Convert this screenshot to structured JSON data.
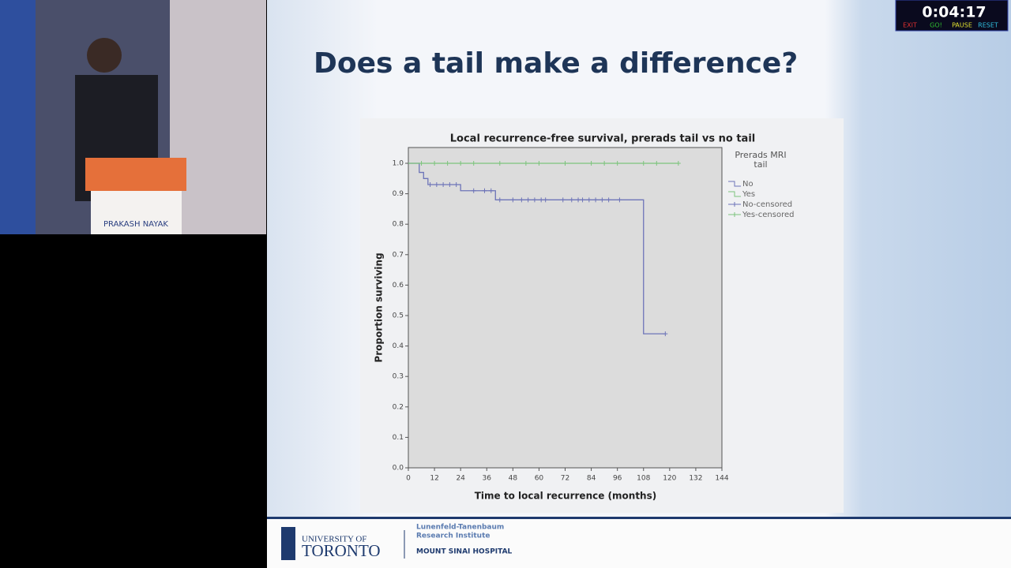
{
  "timer": {
    "time": "0:04:17",
    "buttons": [
      "EXIT",
      "GO!",
      "PAUSE",
      "RESET"
    ]
  },
  "speaker": {
    "name_plate": "PRAKASH NAYAK"
  },
  "slide": {
    "title": "Does a tail make a difference?"
  },
  "chart_data": {
    "type": "line",
    "title": "Local recurrence-free survival, prerads tail vs no tail",
    "x_label": "Time to local recurrence (months)",
    "y_label": "Proportion surviving",
    "legend_title": "Prerads MRI tail",
    "legend": "right",
    "step": "post",
    "xlim": [
      0,
      144
    ],
    "xticks": [
      0,
      12,
      24,
      36,
      48,
      60,
      72,
      84,
      96,
      108,
      120,
      132,
      144
    ],
    "ylim": [
      0,
      1
    ],
    "yticks": [
      {
        "value": 0,
        "label": "0.0"
      },
      0.1,
      0.2,
      0.3,
      0.4,
      0.5,
      0.6,
      0.7,
      0.8,
      0.9,
      {
        "value": 1,
        "label": "1.0"
      }
    ],
    "series": [
      {
        "name": "No",
        "color": "#6d74b8",
        "marker": "line",
        "x": [
          0,
          5,
          7,
          9,
          24,
          40,
          108,
          118
        ],
        "values": [
          1.0,
          0.97,
          0.95,
          0.93,
          0.91,
          0.88,
          0.44,
          0.44
        ]
      },
      {
        "name": "Yes",
        "color": "#7cc47c",
        "marker": "line",
        "x": [
          0,
          124
        ],
        "values": [
          1.0,
          1.0
        ]
      },
      {
        "name": "No-censored",
        "color": "#6d74b8",
        "marker": "cross",
        "x": [
          10,
          13,
          16,
          19,
          22,
          30,
          35,
          38,
          42,
          48,
          52,
          55,
          58,
          61,
          63,
          71,
          75,
          78,
          80,
          83,
          86,
          89,
          92,
          97,
          118
        ],
        "values": [
          0.93,
          0.93,
          0.93,
          0.93,
          0.93,
          0.91,
          0.91,
          0.91,
          0.88,
          0.88,
          0.88,
          0.88,
          0.88,
          0.88,
          0.88,
          0.88,
          0.88,
          0.88,
          0.88,
          0.88,
          0.88,
          0.88,
          0.88,
          0.88,
          0.44
        ]
      },
      {
        "name": "Yes-censored",
        "color": "#7cc47c",
        "marker": "cross",
        "x": [
          6,
          12,
          18,
          24,
          30,
          42,
          54,
          60,
          72,
          84,
          90,
          96,
          108,
          114,
          124
        ],
        "values": [
          1,
          1,
          1,
          1,
          1,
          1,
          1,
          1,
          1,
          1,
          1,
          1,
          1,
          1,
          1
        ]
      }
    ]
  },
  "footer": {
    "university": [
      "UNIVERSITY OF",
      "TORONTO"
    ],
    "institute": [
      "Lunenfeld-Tanenbaum",
      "Research Institute"
    ],
    "hospital": "MOUNT SINAI HOSPITAL"
  }
}
